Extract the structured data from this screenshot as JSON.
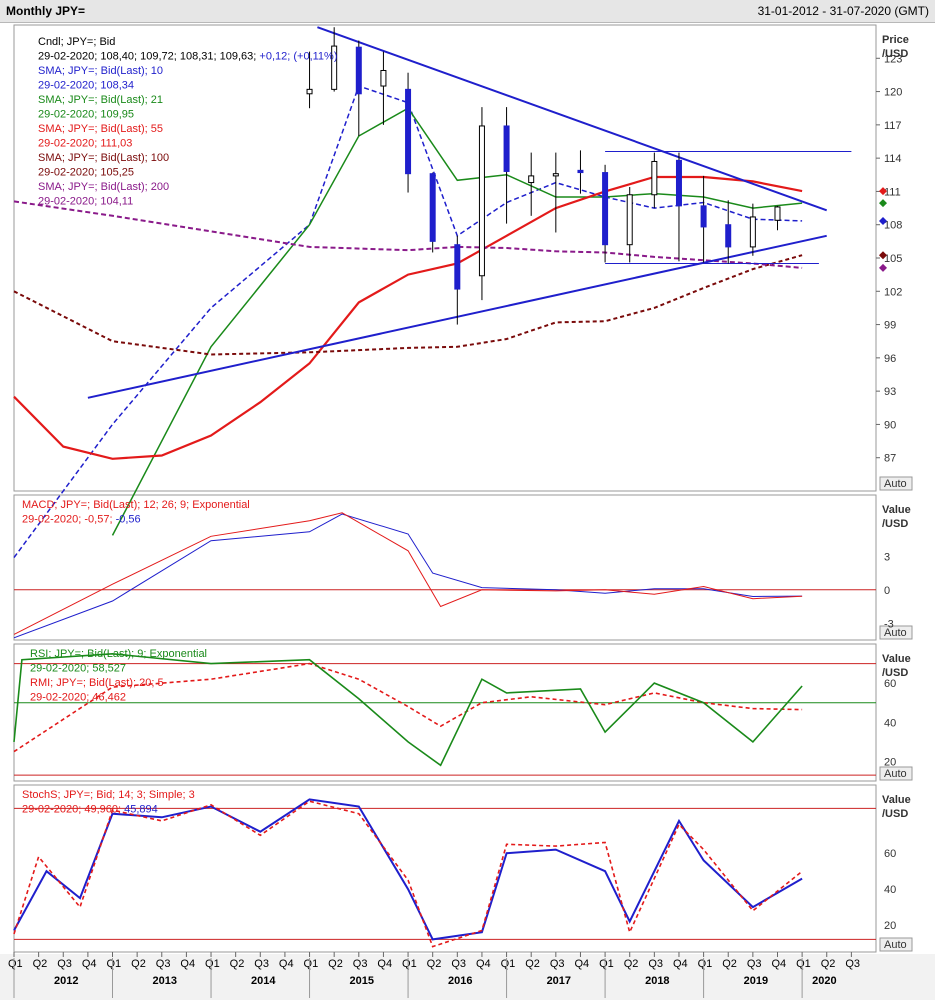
{
  "window": {
    "title": "Monthly JPY=",
    "date_range": "31-01-2012 - 31-07-2020 (GMT)"
  },
  "colors": {
    "blue": "#1f1fcc",
    "green": "#1a8a1a",
    "red": "#e31a1a",
    "maroon": "#7a0a0a",
    "purple": "#8a1a8a",
    "grid_red": "#cc2222"
  },
  "price_panel": {
    "axis_title": [
      "Price",
      "/USD"
    ],
    "auto_label": "Auto",
    "ticks": [
      "123",
      "120",
      "117",
      "114",
      "111",
      "108",
      "105",
      "102",
      "99",
      "96",
      "93",
      "90",
      "87"
    ],
    "legend": [
      {
        "text": "Cndl; JPY=; Bid",
        "color": "#000000"
      },
      {
        "text": "29-02-2020; 108,40; 109,72; 108,31; 109,63; ",
        "extra": "+0,12; (+0,11%)",
        "color": "#000000",
        "extra_color": "#1f1fcc"
      },
      {
        "text": "SMA; JPY=; Bid(Last);  10",
        "color": "#1f1fcc"
      },
      {
        "text": "29-02-2020; 108,34",
        "color": "#1f1fcc"
      },
      {
        "text": "SMA; JPY=; Bid(Last);  21",
        "color": "#1a8a1a"
      },
      {
        "text": "29-02-2020; 109,95",
        "color": "#1a8a1a"
      },
      {
        "text": "SMA; JPY=; Bid(Last);  55",
        "color": "#e31a1a"
      },
      {
        "text": "29-02-2020; 111,03",
        "color": "#e31a1a"
      },
      {
        "text": "SMA; JPY=; Bid(Last);  100",
        "color": "#7a0a0a"
      },
      {
        "text": "29-02-2020; 105,25",
        "color": "#7a0a0a"
      },
      {
        "text": "SMA; JPY=; Bid(Last);  200",
        "color": "#8a1a8a"
      },
      {
        "text": "29-02-2020; 104,11",
        "color": "#8a1a8a"
      }
    ]
  },
  "macd_panel": {
    "axis_title": [
      "Value",
      "/USD"
    ],
    "auto_label": "Auto",
    "ticks": [
      "3",
      "0",
      "-3"
    ],
    "legend": [
      {
        "text": "MACD; JPY=; Bid(Last);  12; 26; 9; Exponential",
        "color": "#e31a1a"
      },
      {
        "text": "29-02-2020; -0,57; ",
        "extra": "-0,56",
        "color": "#e31a1a",
        "extra_color": "#1f1fcc"
      }
    ]
  },
  "rsi_panel": {
    "axis_title": [
      "Value",
      "/USD"
    ],
    "auto_label": "Auto",
    "ticks": [
      "60",
      "40",
      "20"
    ],
    "legend": [
      {
        "text": "RSI; JPY=; Bid(Last);  9; Exponential",
        "color": "#1a8a1a"
      },
      {
        "text": "29-02-2020; 58,527",
        "color": "#1a8a1a"
      },
      {
        "text": "RMI; JPY=; Bid(Last);  20;  5",
        "color": "#e31a1a"
      },
      {
        "text": "29-02-2020; 46,462",
        "color": "#e31a1a"
      }
    ]
  },
  "stoch_panel": {
    "axis_title": [
      "Value",
      "/USD"
    ],
    "auto_label": "Auto",
    "ticks": [
      "60",
      "40",
      "20"
    ],
    "legend": [
      {
        "text": "StochS; JPY=; Bid;  14;  3; Simple;  3",
        "color": "#e31a1a"
      },
      {
        "text": "29-02-2020; 49,960; ",
        "extra": "45,894",
        "color": "#e31a1a",
        "extra_color": "#1f1fcc"
      }
    ]
  },
  "time_axis": {
    "quarters": [
      "Q1",
      "Q2",
      "Q3",
      "Q4",
      "Q1",
      "Q2",
      "Q3",
      "Q4",
      "Q1",
      "Q2",
      "Q3",
      "Q4",
      "Q1",
      "Q2",
      "Q3",
      "Q4",
      "Q1",
      "Q2",
      "Q3",
      "Q4",
      "Q1",
      "Q2",
      "Q3",
      "Q4",
      "Q1",
      "Q2",
      "Q3",
      "Q4",
      "Q1",
      "Q2",
      "Q3",
      "Q4",
      "Q1",
      "Q2",
      "Q3"
    ],
    "years": [
      "2012",
      "2013",
      "2014",
      "2015",
      "2016",
      "2017",
      "2018",
      "2019",
      "2020"
    ]
  },
  "chart_data": {
    "type": "line",
    "title": "Monthly JPY=",
    "x_range": [
      "2012-01",
      "2020-07"
    ],
    "ylim": [
      84,
      126
    ],
    "candles": [
      [
        2015.0,
        119.8,
        123.6,
        118.5,
        120.2
      ],
      [
        2015.25,
        120.2,
        125.8,
        120.0,
        124.1
      ],
      [
        2015.5,
        124.0,
        124.6,
        116.0,
        119.8
      ],
      [
        2015.75,
        120.5,
        123.6,
        117.0,
        121.9
      ],
      [
        2016.0,
        120.2,
        121.7,
        110.9,
        112.6
      ],
      [
        2016.25,
        112.6,
        112.7,
        105.5,
        106.5
      ],
      [
        2016.5,
        106.2,
        107.0,
        99.0,
        102.2
      ],
      [
        2016.75,
        103.4,
        118.6,
        101.2,
        116.9
      ],
      [
        2017.0,
        116.9,
        118.6,
        108.1,
        112.8
      ],
      [
        2017.25,
        111.8,
        114.5,
        108.8,
        112.4
      ],
      [
        2017.5,
        112.4,
        114.5,
        107.3,
        112.6
      ],
      [
        2017.75,
        112.9,
        114.7,
        110.8,
        112.7
      ],
      [
        2018.0,
        112.7,
        113.4,
        104.6,
        106.2
      ],
      [
        2018.25,
        106.2,
        111.4,
        104.6,
        110.7
      ],
      [
        2018.5,
        110.7,
        114.5,
        109.5,
        113.7
      ],
      [
        2018.75,
        113.8,
        114.5,
        104.7,
        109.7
      ],
      [
        2019.0,
        109.7,
        112.4,
        104.6,
        107.8
      ],
      [
        2019.25,
        108.0,
        110.2,
        104.5,
        106.0
      ],
      [
        2019.5,
        106.0,
        109.9,
        105.2,
        108.7
      ],
      [
        2019.75,
        108.4,
        109.7,
        107.5,
        109.6
      ]
    ],
    "series": [
      {
        "name": "SMA; JPY=; Bid(Last); 10",
        "points": [
          [
            2012.0,
            78.0
          ],
          [
            2013.0,
            90.0
          ],
          [
            2014.0,
            100.5
          ],
          [
            2015.0,
            108.0
          ],
          [
            2015.5,
            120.5
          ],
          [
            2016.0,
            119.0
          ],
          [
            2016.5,
            107.0
          ],
          [
            2017.0,
            110.0
          ],
          [
            2017.5,
            111.8
          ],
          [
            2018.0,
            110.5
          ],
          [
            2018.5,
            109.5
          ],
          [
            2019.0,
            110.0
          ],
          [
            2019.5,
            108.5
          ],
          [
            2020.0,
            108.34
          ]
        ]
      },
      {
        "name": "SMA; JPY=; Bid(Last); 21",
        "points": [
          [
            2013.0,
            80.0
          ],
          [
            2014.0,
            97.0
          ],
          [
            2015.0,
            108.0
          ],
          [
            2015.5,
            116.0
          ],
          [
            2016.0,
            118.5
          ],
          [
            2016.5,
            112.0
          ],
          [
            2017.0,
            112.5
          ],
          [
            2017.5,
            110.5
          ],
          [
            2018.0,
            110.5
          ],
          [
            2018.5,
            110.8
          ],
          [
            2019.0,
            110.5
          ],
          [
            2019.5,
            109.5
          ],
          [
            2020.0,
            109.95
          ]
        ]
      },
      {
        "name": "SMA; JPY=; Bid(Last); 55",
        "points": [
          [
            2012.0,
            92.5
          ],
          [
            2012.5,
            88.0
          ],
          [
            2013.0,
            86.9
          ],
          [
            2013.5,
            87.2
          ],
          [
            2014.0,
            89.0
          ],
          [
            2014.5,
            92.0
          ],
          [
            2015.0,
            95.5
          ],
          [
            2015.5,
            101.0
          ],
          [
            2016.0,
            103.5
          ],
          [
            2016.5,
            104.5
          ],
          [
            2017.0,
            107.0
          ],
          [
            2017.5,
            109.5
          ],
          [
            2018.0,
            111.0
          ],
          [
            2018.5,
            112.3
          ],
          [
            2019.0,
            112.3
          ],
          [
            2019.5,
            111.9
          ],
          [
            2020.0,
            111.03
          ]
        ]
      },
      {
        "name": "SMA; JPY=; Bid(Last); 100",
        "points": [
          [
            2012.0,
            102.0
          ],
          [
            2013.0,
            97.5
          ],
          [
            2014.0,
            96.3
          ],
          [
            2015.0,
            96.5
          ],
          [
            2016.0,
            96.9
          ],
          [
            2016.5,
            97.0
          ],
          [
            2017.0,
            97.7
          ],
          [
            2017.5,
            99.2
          ],
          [
            2018.0,
            99.3
          ],
          [
            2018.5,
            100.5
          ],
          [
            2019.0,
            102.3
          ],
          [
            2019.5,
            104.0
          ],
          [
            2020.0,
            105.25
          ]
        ]
      },
      {
        "name": "SMA; JPY=; Bid(Last); 200",
        "points": [
          [
            2012.0,
            110.1
          ],
          [
            2013.0,
            108.8
          ],
          [
            2014.0,
            107.4
          ],
          [
            2015.0,
            106.0
          ],
          [
            2016.0,
            105.7
          ],
          [
            2016.5,
            106.0
          ],
          [
            2017.0,
            105.9
          ],
          [
            2017.5,
            105.6
          ],
          [
            2018.0,
            105.5
          ],
          [
            2018.5,
            105.1
          ],
          [
            2019.0,
            104.8
          ],
          [
            2019.5,
            104.5
          ],
          [
            2020.0,
            104.11
          ]
        ]
      }
    ],
    "trendlines": [
      {
        "name": "resistance",
        "points": [
          [
            2015.08,
            125.8
          ],
          [
            2020.25,
            109.3
          ]
        ]
      },
      {
        "name": "support",
        "points": [
          [
            2012.75,
            92.4
          ],
          [
            2020.25,
            107.0
          ]
        ]
      },
      {
        "name": "upper channel",
        "points": [
          [
            2018.0,
            114.6
          ],
          [
            2020.5,
            114.6
          ]
        ]
      },
      {
        "name": "lower channel",
        "points": [
          [
            2018.0,
            104.5
          ],
          [
            2020.17,
            104.5
          ]
        ]
      }
    ],
    "macd": {
      "ylim": [
        -4.5,
        8.5
      ],
      "macd": [
        [
          2012.0,
          -4.0
        ],
        [
          2013.0,
          0.5
        ],
        [
          2014.0,
          4.8
        ],
        [
          2015.0,
          6.2
        ],
        [
          2015.33,
          6.9
        ],
        [
          2016.0,
          3.5
        ],
        [
          2016.33,
          -1.5
        ],
        [
          2016.75,
          0.0
        ],
        [
          2017.5,
          -0.1
        ],
        [
          2018.0,
          0.0
        ],
        [
          2018.5,
          -0.4
        ],
        [
          2019.0,
          0.3
        ],
        [
          2019.5,
          -0.8
        ],
        [
          2020.0,
          -0.57
        ]
      ],
      "signal": [
        [
          2012.0,
          -4.3
        ],
        [
          2013.0,
          -1.0
        ],
        [
          2014.0,
          4.4
        ],
        [
          2015.0,
          5.2
        ],
        [
          2015.33,
          6.8
        ],
        [
          2016.0,
          5.0
        ],
        [
          2016.25,
          1.5
        ],
        [
          2016.75,
          0.2
        ],
        [
          2017.5,
          0.0
        ],
        [
          2018.0,
          -0.3
        ],
        [
          2018.5,
          0.1
        ],
        [
          2019.0,
          0.1
        ],
        [
          2019.5,
          -0.6
        ],
        [
          2020.0,
          -0.56
        ]
      ],
      "levels": [
        0
      ]
    },
    "rsi": {
      "ylim": [
        10,
        80
      ],
      "rsi": [
        [
          2012.0,
          30.0
        ],
        [
          2012.08,
          72.0
        ],
        [
          2013.0,
          75.0
        ],
        [
          2014.0,
          70.0
        ],
        [
          2015.0,
          72.0
        ],
        [
          2015.5,
          52.0
        ],
        [
          2016.0,
          30.0
        ],
        [
          2016.33,
          18.0
        ],
        [
          2016.75,
          62.0
        ],
        [
          2017.0,
          55.0
        ],
        [
          2017.75,
          57.0
        ],
        [
          2018.0,
          35.0
        ],
        [
          2018.5,
          60.0
        ],
        [
          2019.0,
          50.0
        ],
        [
          2019.5,
          30.0
        ],
        [
          2020.0,
          58.527
        ]
      ],
      "rmi": [
        [
          2012.0,
          25.0
        ],
        [
          2013.0,
          58.0
        ],
        [
          2014.0,
          62.0
        ],
        [
          2015.0,
          70.0
        ],
        [
          2015.5,
          62.0
        ],
        [
          2016.0,
          48.0
        ],
        [
          2016.33,
          38.0
        ],
        [
          2016.75,
          50.0
        ],
        [
          2017.25,
          53.0
        ],
        [
          2018.0,
          49.0
        ],
        [
          2018.5,
          55.0
        ],
        [
          2019.0,
          50.0
        ],
        [
          2019.5,
          47.0
        ],
        [
          2020.0,
          46.462
        ]
      ],
      "levels": [
        70,
        50,
        13
      ]
    },
    "stoch": {
      "ylim": [
        5,
        98
      ],
      "k": [
        [
          2012.0,
          17.0
        ],
        [
          2012.33,
          50.0
        ],
        [
          2012.67,
          35.0
        ],
        [
          2013.0,
          82.0
        ],
        [
          2013.5,
          80.0
        ],
        [
          2014.0,
          86.0
        ],
        [
          2014.5,
          72.0
        ],
        [
          2015.0,
          90.0
        ],
        [
          2015.5,
          86.0
        ],
        [
          2016.0,
          40.0
        ],
        [
          2016.25,
          12.0
        ],
        [
          2016.75,
          16.0
        ],
        [
          2017.0,
          60.0
        ],
        [
          2017.5,
          62.0
        ],
        [
          2018.0,
          50.0
        ],
        [
          2018.25,
          22.0
        ],
        [
          2018.75,
          78.0
        ],
        [
          2019.0,
          56.0
        ],
        [
          2019.5,
          30.0
        ],
        [
          2020.0,
          45.894
        ]
      ],
      "d": [
        [
          2012.0,
          15.0
        ],
        [
          2012.25,
          58.0
        ],
        [
          2012.67,
          30.0
        ],
        [
          2013.0,
          84.0
        ],
        [
          2013.5,
          78.0
        ],
        [
          2014.0,
          87.0
        ],
        [
          2014.5,
          70.0
        ],
        [
          2015.0,
          89.0
        ],
        [
          2015.5,
          82.0
        ],
        [
          2016.0,
          45.0
        ],
        [
          2016.25,
          8.0
        ],
        [
          2016.75,
          17.0
        ],
        [
          2017.0,
          65.0
        ],
        [
          2017.5,
          64.0
        ],
        [
          2018.0,
          66.0
        ],
        [
          2018.25,
          16.0
        ],
        [
          2018.75,
          76.0
        ],
        [
          2019.0,
          62.0
        ],
        [
          2019.5,
          28.0
        ],
        [
          2020.0,
          49.96
        ]
      ],
      "levels": [
        85,
        12
      ]
    }
  }
}
